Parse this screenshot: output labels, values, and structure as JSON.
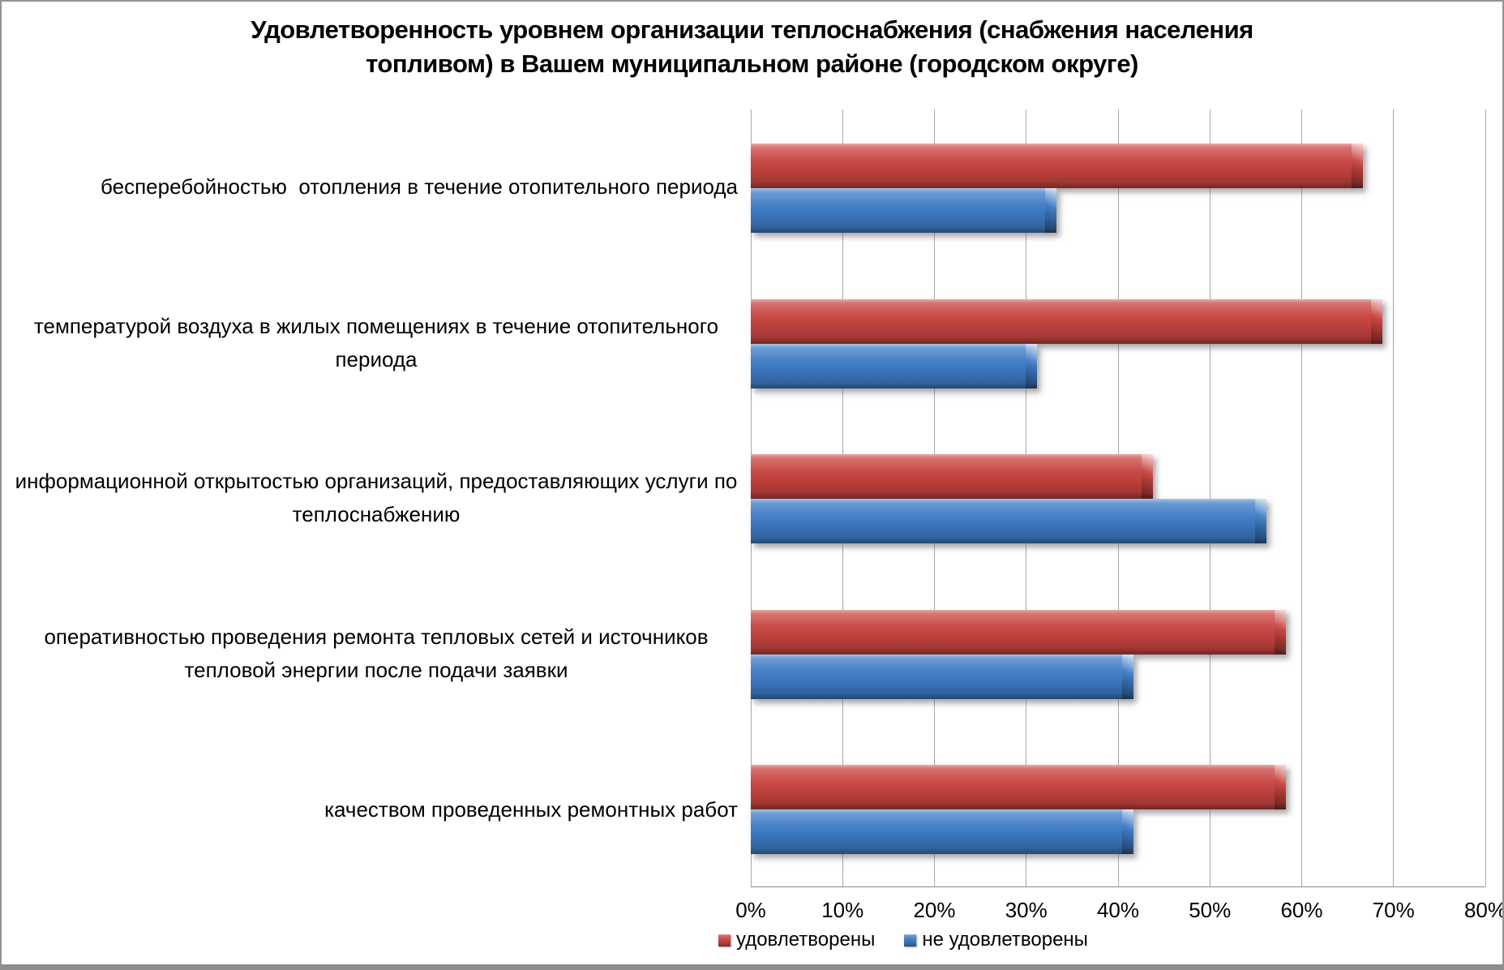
{
  "title": "Удовлетворенность уровнем организации теплоснабжения (снабжения населения топливом) в Вашем муниципальном районе (городском округе)",
  "chart_data": {
    "type": "bar",
    "orientation": "horizontal",
    "title": "Удовлетворенность уровнем организации теплоснабжения (снабжения населения топливом) в Вашем муниципальном районе (городском округе)",
    "categories": [
      "бесперебойностью  отопления в течение отопительного периода",
      "температурой воздуха в жилых помещениях в течение отопительного периода",
      "информационной открытостью организаций, предоставляющих услуги по теплоснабжению",
      "оперативностью проведения ремонта тепловых сетей и источников тепловой энергии после подачи заявки",
      "качеством проведенных ремонтных работ"
    ],
    "series": [
      {
        "name": "удовлетворены",
        "color": "#c84440",
        "values": [
          66.7,
          68.8,
          43.8,
          58.3,
          58.3
        ]
      },
      {
        "name": "не удовлетворены",
        "color": "#3e7cc6",
        "values": [
          33.3,
          31.2,
          56.2,
          41.7,
          41.7
        ]
      }
    ],
    "x_ticks": [
      "0%",
      "10%",
      "20%",
      "30%",
      "40%",
      "50%",
      "60%",
      "70%",
      "80%"
    ],
    "xlim": [
      0,
      80
    ],
    "xlabel": "",
    "ylabel": "",
    "grid": true,
    "grid_color": "#a8a8a8",
    "axis_color": "#8a8a8a",
    "legend_position": "bottom"
  }
}
